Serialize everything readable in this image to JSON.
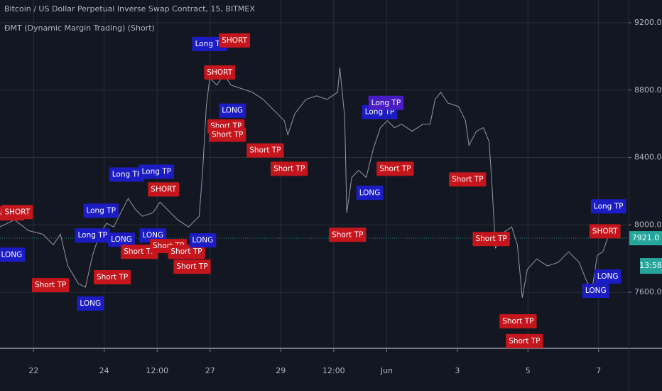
{
  "chart_data": {
    "type": "line",
    "title": "Bitcoin / US Dollar Perpetual Inverse Swap Contract, 15, BITMEX",
    "subtitle": "ĐMT (Dynamic Margin Trading) (Short)",
    "color": "#9598a1",
    "grid": true,
    "xlim": [
      -0.95,
      16.85
    ],
    "xticks": [
      {
        "value": 0,
        "label": "22"
      },
      {
        "value": 2,
        "label": "24"
      },
      {
        "value": 3.5,
        "label": "12:00"
      },
      {
        "value": 5,
        "label": "27"
      },
      {
        "value": 7,
        "label": "29"
      },
      {
        "value": 8.5,
        "label": "12:00"
      },
      {
        "value": 10,
        "label": "Jun"
      },
      {
        "value": 12,
        "label": "3"
      },
      {
        "value": 14,
        "label": "5"
      },
      {
        "value": 16,
        "label": "7"
      }
    ],
    "ylim": [
      7267,
      9335
    ],
    "yticks": [
      {
        "value": 7600,
        "label": "7600.0"
      },
      {
        "value": 8000,
        "label": "8000.0"
      },
      {
        "value": 8400,
        "label": "8400.0"
      },
      {
        "value": 8800,
        "label": "8800.0"
      },
      {
        "value": 9200,
        "label": "9200.0"
      }
    ],
    "x": [
      -0.95,
      -0.54,
      -0.14,
      0.26,
      0.56,
      0.76,
      0.97,
      1.27,
      1.47,
      1.67,
      1.87,
      2.07,
      2.27,
      2.47,
      2.68,
      2.88,
      3.08,
      3.38,
      3.58,
      3.78,
      4.08,
      4.39,
      4.69,
      4.79,
      4.89,
      4.99,
      5.19,
      5.39,
      5.59,
      5.9,
      6.2,
      6.5,
      6.8,
      7.1,
      7.2,
      7.4,
      7.71,
      8.01,
      8.31,
      8.61,
      8.67,
      8.81,
      8.87,
      9.01,
      9.21,
      9.42,
      9.62,
      9.82,
      10.02,
      10.22,
      10.42,
      10.72,
      11.03,
      11.23,
      11.37,
      11.53,
      11.73,
      12.03,
      12.23,
      12.33,
      12.54,
      12.74,
      12.9,
      12.98,
      13.08,
      13.24,
      13.54,
      13.7,
      13.84,
      13.98,
      14.25,
      14.55,
      14.85,
      15.15,
      15.45,
      15.65,
      15.81,
      15.96,
      16.12,
      16.26
    ],
    "values": [
      7988,
      8030,
      7966,
      7945,
      7882,
      7945,
      7756,
      7651,
      7630,
      7819,
      7945,
      8009,
      7988,
      8072,
      8156,
      8093,
      8051,
      8072,
      8135,
      8093,
      8030,
      7988,
      8051,
      8324,
      8703,
      8872,
      8830,
      8893,
      8830,
      8808,
      8787,
      8745,
      8682,
      8619,
      8535,
      8661,
      8745,
      8766,
      8745,
      8787,
      8935,
      8640,
      8072,
      8282,
      8324,
      8282,
      8451,
      8577,
      8619,
      8577,
      8598,
      8556,
      8598,
      8598,
      8745,
      8787,
      8724,
      8703,
      8619,
      8472,
      8556,
      8577,
      8493,
      8240,
      7861,
      7945,
      7988,
      7882,
      7567,
      7735,
      7798,
      7756,
      7777,
      7840,
      7777,
      7672,
      7609,
      7819,
      7840,
      7924
    ],
    "last_price": {
      "value": 7921,
      "label": "7921.0",
      "color": "#26a69a"
    },
    "countdown": "13:58",
    "signals": [
      {
        "label": "SHORT",
        "x": -0.7,
        "y": 8068,
        "color": "#c4161c"
      },
      {
        "label": "SHORT",
        "x": -0.46,
        "y": 8076,
        "color": "#c4161c"
      },
      {
        "label": "LONG",
        "x": -0.62,
        "y": 7823,
        "color": "#1c1cc4"
      },
      {
        "label": "Short TP",
        "x": 0.48,
        "y": 7642,
        "color": "#c4161c"
      },
      {
        "label": "LONG",
        "x": 1.61,
        "y": 7533,
        "color": "#1c1cc4"
      },
      {
        "label": "Long TP",
        "x": 1.67,
        "y": 7937,
        "color": "#1c1cc4"
      },
      {
        "label": "Long TP",
        "x": 1.91,
        "y": 8084,
        "color": "#1c1cc4"
      },
      {
        "label": "Short TP",
        "x": 2.23,
        "y": 7689,
        "color": "#c4161c"
      },
      {
        "label": "LONG",
        "x": 2.49,
        "y": 7912,
        "color": "#1c1cc4"
      },
      {
        "label": "Long TP",
        "x": 2.64,
        "y": 8299,
        "color": "#1c1cc4"
      },
      {
        "label": "Short TP",
        "x": 3.0,
        "y": 7840,
        "color": "#c4161c"
      },
      {
        "label": "Long TP",
        "x": 3.48,
        "y": 8316,
        "color": "#1c1cc4"
      },
      {
        "label": "SHORT",
        "x": 3.68,
        "y": 8211,
        "color": "#c4161c"
      },
      {
        "label": "LONG",
        "x": 3.38,
        "y": 7937,
        "color": "#1c1cc4"
      },
      {
        "label": "Short TP",
        "x": 3.82,
        "y": 7874,
        "color": "#c4161c"
      },
      {
        "label": "Short TP",
        "x": 4.33,
        "y": 7840,
        "color": "#c4161c"
      },
      {
        "label": "Short TP",
        "x": 4.49,
        "y": 7752,
        "color": "#c4161c"
      },
      {
        "label": "LONG",
        "x": 4.79,
        "y": 7908,
        "color": "#1c1cc4"
      },
      {
        "label": "Long TP",
        "x": 4.99,
        "y": 9074,
        "color": "#1c1cc4"
      },
      {
        "label": "SHORT",
        "x": 5.69,
        "y": 9095,
        "color": "#c4161c"
      },
      {
        "label": "SHORT",
        "x": 5.27,
        "y": 8905,
        "color": "#c4161c"
      },
      {
        "label": "LONG",
        "x": 5.63,
        "y": 8678,
        "color": "#1c1cc4"
      },
      {
        "label": "Short TP",
        "x": 5.45,
        "y": 8585,
        "color": "#c4161c"
      },
      {
        "label": "Short TP",
        "x": 5.49,
        "y": 8535,
        "color": "#c4161c"
      },
      {
        "label": "Short TP",
        "x": 6.56,
        "y": 8442,
        "color": "#c4161c"
      },
      {
        "label": "Short TP",
        "x": 7.24,
        "y": 8333,
        "color": "#c4161c"
      },
      {
        "label": "Short TP",
        "x": 8.89,
        "y": 7941,
        "color": "#c4161c"
      },
      {
        "label": "LONG",
        "x": 9.52,
        "y": 8190,
        "color": "#1c1cc4"
      },
      {
        "label": "Short TP",
        "x": 10.24,
        "y": 8333,
        "color": "#c4161c"
      },
      {
        "label": "Long TP",
        "x": 9.8,
        "y": 8670,
        "color": "#1c1cc4"
      },
      {
        "label": "Long TP",
        "x": 9.98,
        "y": 8724,
        "color": "#4a1cc4"
      },
      {
        "label": "Short TP",
        "x": 12.29,
        "y": 8270,
        "color": "#c4161c"
      },
      {
        "label": "Short TP",
        "x": 12.96,
        "y": 7916,
        "color": "#c4161c"
      },
      {
        "label": "Short TP",
        "x": 13.72,
        "y": 7428,
        "color": "#c4161c"
      },
      {
        "label": "Short TP",
        "x": 13.9,
        "y": 7310,
        "color": "#c4161c"
      },
      {
        "label": "LONG",
        "x": 15.92,
        "y": 7609,
        "color": "#1c1cc4"
      },
      {
        "label": "LONG",
        "x": 16.26,
        "y": 7693,
        "color": "#1c1cc4"
      },
      {
        "label": "SHORT",
        "x": 16.18,
        "y": 7962,
        "color": "#c4161c"
      },
      {
        "label": "Long TP",
        "x": 16.28,
        "y": 8110,
        "color": "#1c1cc4"
      }
    ]
  }
}
